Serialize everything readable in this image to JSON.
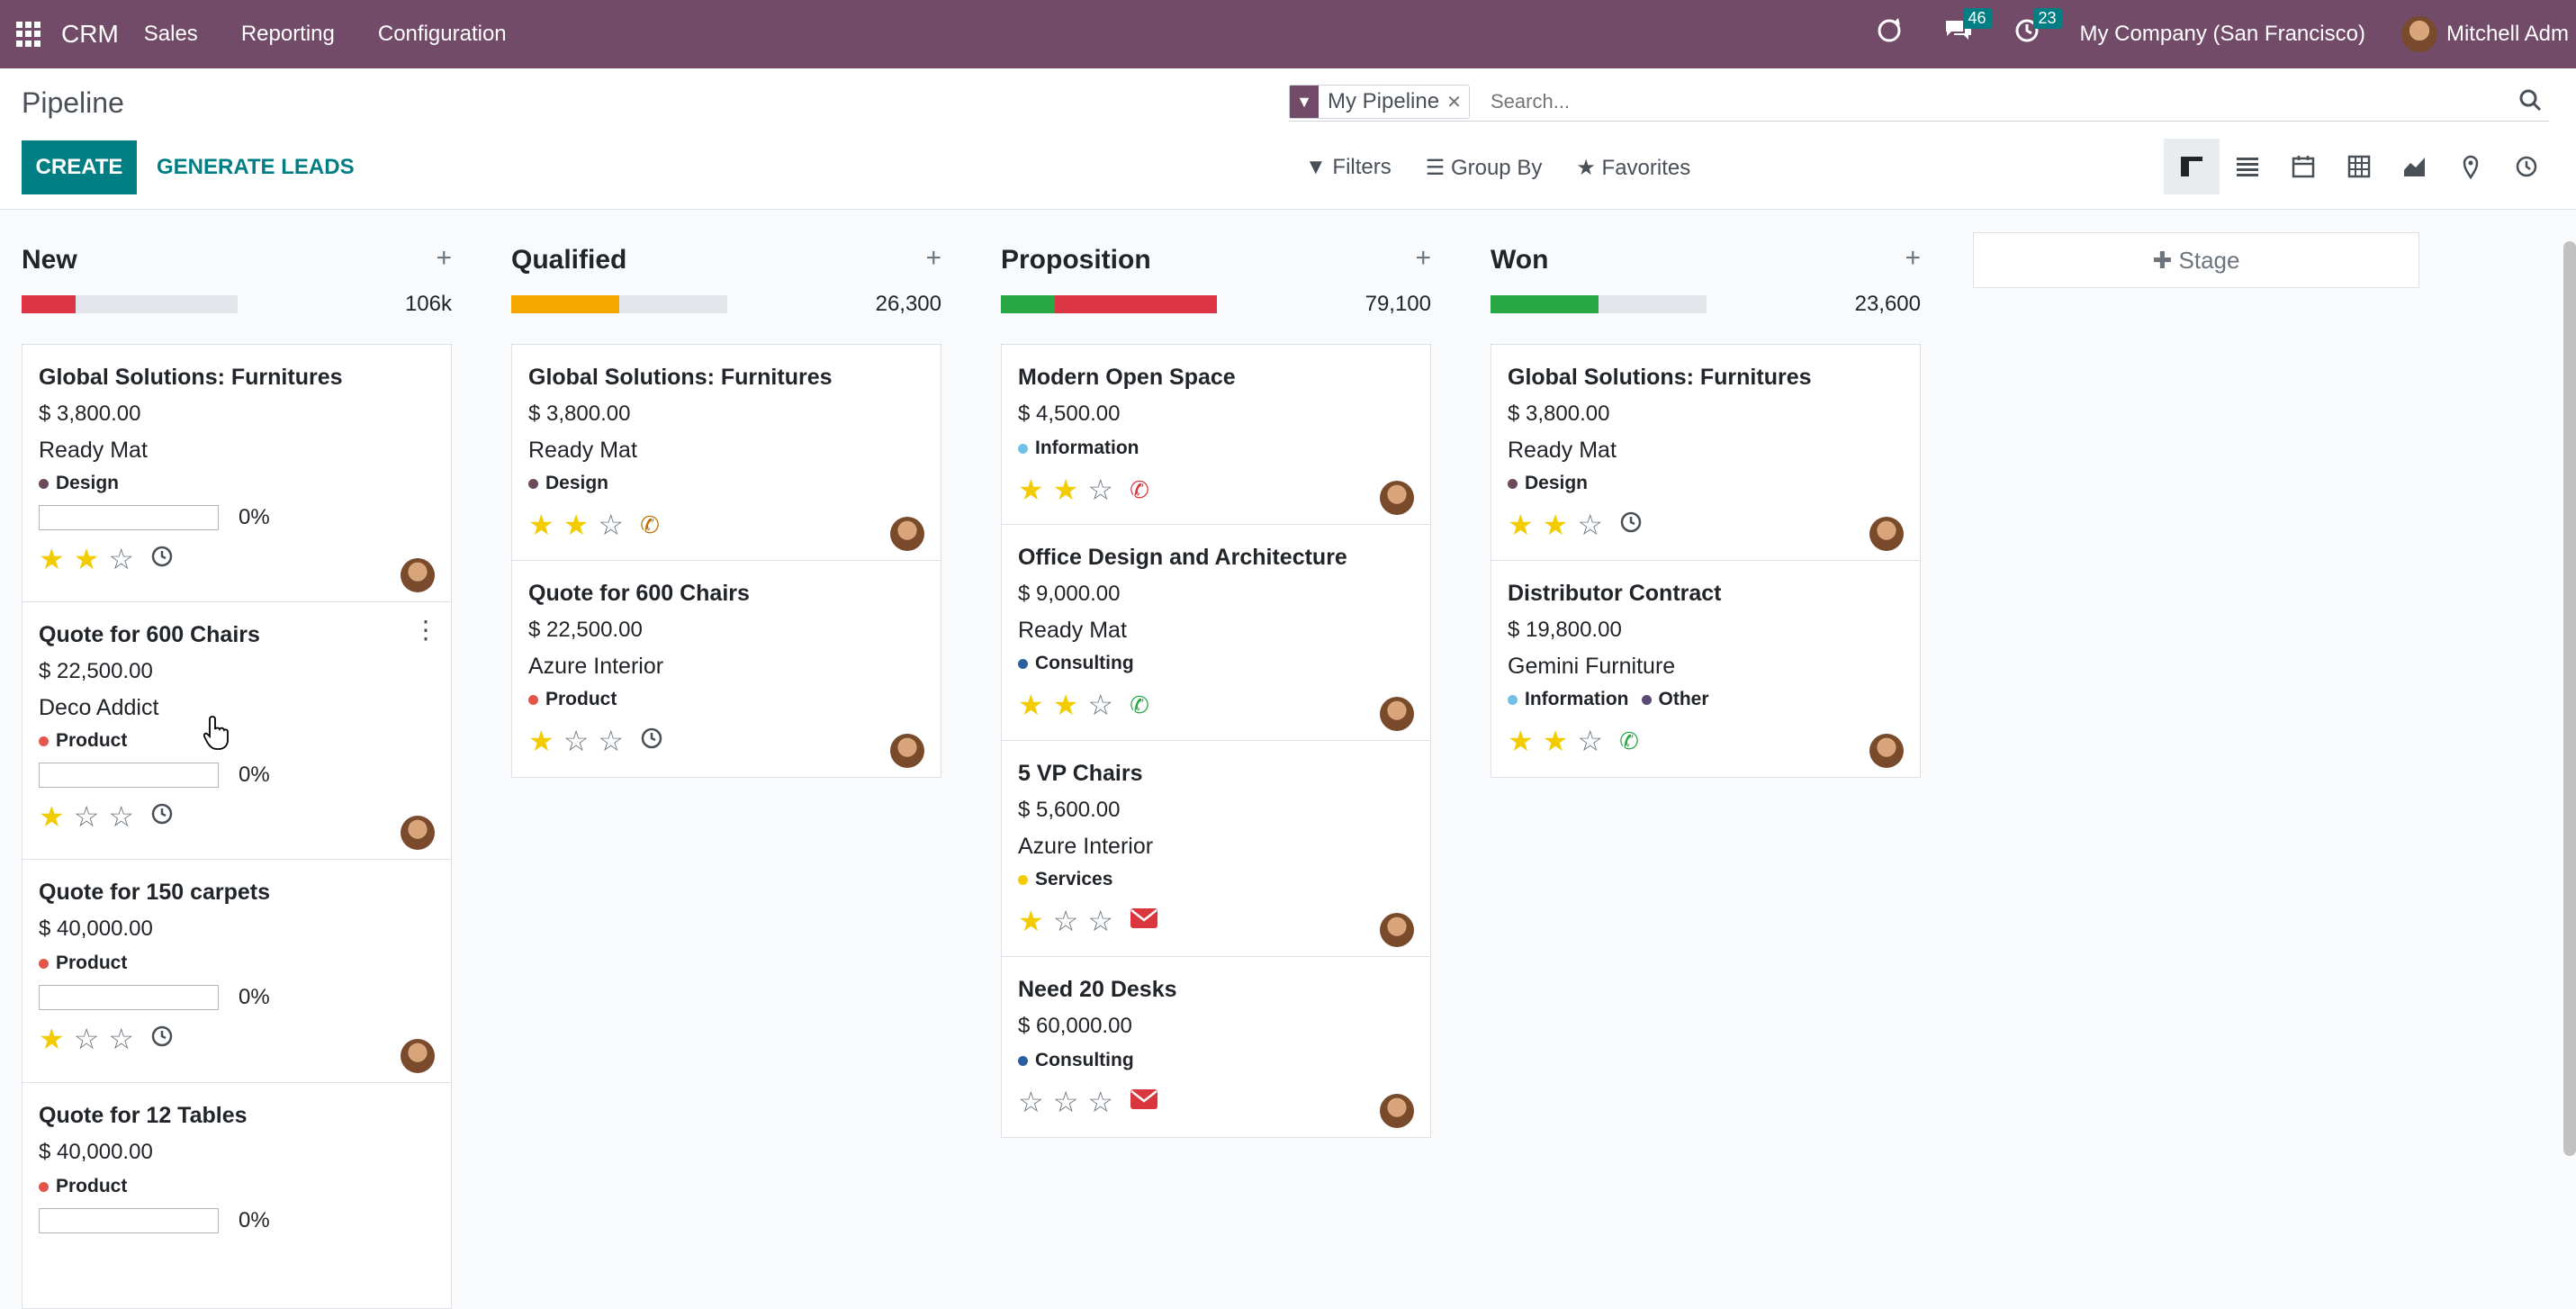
{
  "navbar": {
    "app_name": "CRM",
    "menus": [
      "Sales",
      "Reporting",
      "Configuration"
    ],
    "messages_count": "46",
    "activities_count": "23",
    "company": "My Company (San Francisco)",
    "user": "Mitchell Adm"
  },
  "control_panel": {
    "breadcrumb": "Pipeline",
    "create_label": "CREATE",
    "generate_label": "GENERATE LEADS",
    "facet": "My Pipeline",
    "search_placeholder": "Search...",
    "filters_label": "Filters",
    "group_by_label": "Group By",
    "favorites_label": "Favorites",
    "views": [
      "kanban",
      "list",
      "calendar",
      "pivot",
      "graph",
      "map",
      "activity"
    ],
    "active_view": "kanban"
  },
  "add_stage_label": "Stage",
  "columns": [
    {
      "name": "New",
      "total": "106k",
      "bar": [
        {
          "color": "#dc3545",
          "fraction": 0.25
        }
      ],
      "cards": [
        {
          "title": "Global Solutions: Furnitures",
          "amount": "$ 3,800.00",
          "company": "Ready Mat",
          "tags": [
            {
              "label": "Design",
              "color": "#6c4a5e"
            }
          ],
          "progress": "0%",
          "stars": 2,
          "activity": "clock"
        },
        {
          "title": "Quote for 600 Chairs",
          "amount": "$ 22,500.00",
          "company": "Deco Addict",
          "tags": [
            {
              "label": "Product",
              "color": "#e4564a"
            }
          ],
          "progress": "0%",
          "stars": 1,
          "activity": "clock",
          "menu": true
        },
        {
          "title": "Quote for 150 carpets",
          "amount": "$ 40,000.00",
          "company": "",
          "tags": [
            {
              "label": "Product",
              "color": "#e4564a"
            }
          ],
          "progress": "0%",
          "stars": 1,
          "activity": "clock"
        },
        {
          "title": "Quote for 12 Tables",
          "amount": "$ 40,000.00",
          "company": "",
          "tags": [
            {
              "label": "Product",
              "color": "#e4564a"
            }
          ],
          "progress": "0%",
          "stars": null,
          "activity": ""
        }
      ]
    },
    {
      "name": "Qualified",
      "total": "26,300",
      "bar": [
        {
          "color": "#f7a800",
          "fraction": 0.5
        }
      ],
      "cards": [
        {
          "title": "Global Solutions: Furnitures",
          "amount": "$ 3,800.00",
          "company": "Ready Mat",
          "tags": [
            {
              "label": "Design",
              "color": "#6c4a5e"
            }
          ],
          "progress": "",
          "stars": 2,
          "activity": "phone-orange"
        },
        {
          "title": "Quote for 600 Chairs",
          "amount": "$ 22,500.00",
          "company": "Azure Interior",
          "tags": [
            {
              "label": "Product",
              "color": "#e4564a"
            }
          ],
          "progress": "",
          "stars": 1,
          "activity": "clock"
        }
      ]
    },
    {
      "name": "Proposition",
      "total": "79,100",
      "bar": [
        {
          "color": "#28a745",
          "fraction": 0.25
        },
        {
          "color": "#dc3545",
          "fraction": 0.75
        }
      ],
      "cards": [
        {
          "title": "Modern Open Space",
          "amount": "$ 4,500.00",
          "company": "",
          "tags": [
            {
              "label": "Information",
              "color": "#72c0e8"
            }
          ],
          "progress": "",
          "stars": 2,
          "activity": "phone-red"
        },
        {
          "title": "Office Design and Architecture",
          "amount": "$ 9,000.00",
          "company": "Ready Mat",
          "tags": [
            {
              "label": "Consulting",
              "color": "#2c5f9e"
            }
          ],
          "progress": "",
          "stars": 2,
          "activity": "phone-green"
        },
        {
          "title": "5 VP Chairs",
          "amount": "$ 5,600.00",
          "company": "Azure Interior",
          "tags": [
            {
              "label": "Services",
              "color": "#f3cc00"
            }
          ],
          "progress": "",
          "stars": 1,
          "activity": "mail"
        },
        {
          "title": "Need 20 Desks",
          "amount": "$ 60,000.00",
          "company": "",
          "tags": [
            {
              "label": "Consulting",
              "color": "#2c5f9e"
            }
          ],
          "progress": "",
          "stars": 0,
          "activity": "mail"
        }
      ]
    },
    {
      "name": "Won",
      "total": "23,600",
      "bar": [
        {
          "color": "#28a745",
          "fraction": 0.5
        }
      ],
      "cards": [
        {
          "title": "Global Solutions: Furnitures",
          "amount": "$ 3,800.00",
          "company": "Ready Mat",
          "tags": [
            {
              "label": "Design",
              "color": "#6c4a5e"
            }
          ],
          "progress": "",
          "stars": 2,
          "activity": "clock"
        },
        {
          "title": "Distributor Contract",
          "amount": "$ 19,800.00",
          "company": "Gemini Furniture",
          "tags": [
            {
              "label": "Information",
              "color": "#72c0e8"
            },
            {
              "label": "Other",
              "color": "#5a4a73"
            }
          ],
          "progress": "",
          "stars": 2,
          "activity": "phone-green"
        }
      ]
    }
  ]
}
